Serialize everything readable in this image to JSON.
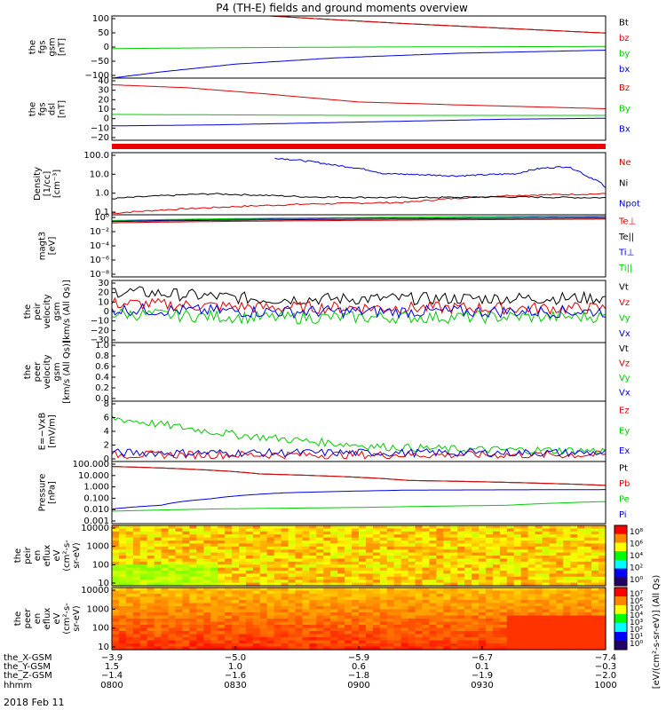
{
  "title": "P4 (TH-E) fields and ground moments overview",
  "date_label": "2018 Feb 11",
  "colors": {
    "black": "#000000",
    "red": "#dd0000",
    "green": "#00cc00",
    "blue": "#0000dd"
  },
  "chart_data": [
    {
      "type": "line",
      "id": "fgs-gsm",
      "ylabel": [
        "the",
        "fgs",
        "gsm",
        "[nT]"
      ],
      "ylim": [
        -100,
        100
      ],
      "yticks": [
        "100",
        "50",
        "0",
        "−50",
        "−100"
      ],
      "series": [
        {
          "name": "Bt",
          "color": "black",
          "x": [
            0.32,
            0.45,
            0.6,
            0.8,
            1.0
          ],
          "values": [
            100,
            88,
            75,
            60,
            45
          ]
        },
        {
          "name": "bz",
          "color": "red",
          "x": [
            0.32,
            0.45,
            0.6,
            0.8,
            1.0
          ],
          "values": [
            100,
            88,
            75,
            60,
            45
          ]
        },
        {
          "name": "by",
          "color": "green",
          "x": [
            0,
            0.25,
            0.5,
            0.75,
            1.0
          ],
          "values": [
            -5,
            -2,
            0,
            1,
            2
          ]
        },
        {
          "name": "bx",
          "color": "blue",
          "x": [
            0,
            0.1,
            0.25,
            0.45,
            0.7,
            1.0
          ],
          "values": [
            -100,
            -80,
            -55,
            -35,
            -20,
            -10
          ]
        }
      ]
    },
    {
      "type": "line",
      "id": "fgs-dsl",
      "ylabel": [
        "the",
        "fgs",
        "dsl",
        "[nT]"
      ],
      "ylim": [
        -25,
        40
      ],
      "yticks": [
        "40",
        "30",
        "20",
        "10",
        "0",
        "−10",
        "−20"
      ],
      "series": [
        {
          "name": "Bz",
          "color": "red",
          "x": [
            0,
            0.15,
            0.3,
            0.5,
            0.7,
            0.85,
            1.0
          ],
          "values": [
            33,
            30,
            24,
            15,
            12,
            10,
            8
          ]
        },
        {
          "name": "By",
          "color": "green",
          "x": [
            0,
            0.5,
            1.0
          ],
          "values": [
            2,
            1,
            1
          ]
        },
        {
          "name": "Bx",
          "color": "blue",
          "x": [
            0,
            0.2,
            0.4,
            0.6,
            0.8,
            1.0
          ],
          "values": [
            -10,
            -9,
            -7,
            -5,
            -3,
            -2
          ]
        }
      ]
    },
    {
      "type": "line",
      "id": "density",
      "ylabel": [
        "Density",
        "[1/cc]",
        "[cm⁻³]"
      ],
      "ylog": true,
      "ylim": [
        0.1,
        300
      ],
      "yticks": [
        "100.0",
        "10.0",
        "1.0",
        "0.1"
      ],
      "series": [
        {
          "name": "Ne",
          "color": "red",
          "x": [
            0,
            0.2,
            0.4,
            0.6,
            0.8,
            1.0
          ],
          "values": [
            0.12,
            0.25,
            0.4,
            0.5,
            1.2,
            1.5
          ]
        },
        {
          "name": "Ni",
          "color": "black",
          "x": [
            0,
            0.2,
            0.4,
            0.6,
            0.8,
            1.0
          ],
          "values": [
            0.8,
            1.5,
            1.0,
            0.9,
            1.0,
            0.9
          ]
        },
        {
          "name": "Npot",
          "color": "blue",
          "x": [
            0.33,
            0.45,
            0.55,
            0.7,
            0.82,
            0.87,
            0.92,
            0.96,
            1.0
          ],
          "values": [
            150,
            60,
            20,
            15,
            20,
            40,
            50,
            15,
            3
          ]
        }
      ]
    },
    {
      "type": "line",
      "id": "moments",
      "ylabel": [
        "magt3",
        "[eV]"
      ],
      "ylog": true,
      "ylim": [
        1e-09,
        10
      ],
      "yticks": [
        "10⁰",
        "10⁻²",
        "10⁻⁴",
        "10⁻⁶",
        "10⁻⁸"
      ],
      "series": [
        {
          "name": "Te⊥",
          "color": "red",
          "x": [
            0,
            1
          ],
          "values": [
            0.5,
            2
          ]
        },
        {
          "name": "Te||",
          "color": "black",
          "x": [
            0,
            1
          ],
          "values": [
            0.8,
            3
          ]
        },
        {
          "name": "Ti⊥",
          "color": "blue",
          "x": [
            0,
            1
          ],
          "values": [
            1,
            5
          ]
        },
        {
          "name": "Ti||",
          "color": "green",
          "x": [
            0,
            1
          ],
          "values": [
            1.2,
            6
          ]
        }
      ]
    },
    {
      "type": "line",
      "id": "peir-velocity",
      "ylabel": [
        "the",
        "peir",
        "velocity",
        "gsm",
        "[km/s (All Qs)]"
      ],
      "ylim": [
        -30,
        30
      ],
      "yticks": [
        "30",
        "20",
        "10",
        "0",
        "−10",
        "−20",
        "−30"
      ],
      "series": [
        {
          "name": "Vt",
          "color": "black",
          "x": [
            0,
            0.3,
            1
          ],
          "values": [
            20,
            12,
            13
          ]
        },
        {
          "name": "Vz",
          "color": "red",
          "x": [
            0,
            0.3,
            1
          ],
          "values": [
            8,
            4,
            3
          ]
        },
        {
          "name": "Vy",
          "color": "green",
          "x": [
            0,
            0.3,
            1
          ],
          "values": [
            -2,
            -6,
            -5
          ]
        },
        {
          "name": "Vx",
          "color": "blue",
          "x": [
            0,
            0.3,
            1
          ],
          "values": [
            2,
            0,
            0
          ]
        }
      ]
    },
    {
      "type": "line",
      "id": "peer-velocity",
      "ylabel": [
        "the",
        "peer",
        "velocity",
        "gsm",
        "[km/s (All Qs)]"
      ],
      "ylim": [
        0,
        1
      ],
      "yticks": [
        "1.0",
        "0.8",
        "0.6",
        "0.4",
        "0.2",
        "0.0"
      ],
      "series": [
        {
          "name": "Vt",
          "color": "black",
          "x": [],
          "values": []
        },
        {
          "name": "Vz",
          "color": "red",
          "x": [],
          "values": []
        },
        {
          "name": "Vy",
          "color": "green",
          "x": [],
          "values": []
        },
        {
          "name": "Vx",
          "color": "blue",
          "x": [],
          "values": []
        }
      ]
    },
    {
      "type": "line",
      "id": "efield",
      "ylabel": [
        "E=−VxB",
        "[mV/m]"
      ],
      "ylim": [
        -1,
        8
      ],
      "yticks": [
        "8",
        "6",
        "4",
        "2",
        "0"
      ],
      "series": [
        {
          "name": "Ez",
          "color": "red",
          "x": [
            0,
            1
          ],
          "values": [
            0,
            0
          ]
        },
        {
          "name": "Ey",
          "color": "green",
          "x": [
            0,
            0.1,
            0.25,
            0.4,
            0.55,
            0.7,
            1.0
          ],
          "values": [
            5.5,
            4.5,
            3,
            2,
            1.2,
            0.8,
            0.6
          ]
        },
        {
          "name": "Ex",
          "color": "blue",
          "x": [
            0,
            1
          ],
          "values": [
            0.3,
            0.3
          ]
        }
      ]
    },
    {
      "type": "line",
      "id": "pressure",
      "ylabel": [
        "Pressure",
        "[nPa]"
      ],
      "ylog": true,
      "ylim": [
        0.001,
        100
      ],
      "yticks": [
        "100.000",
        "10.000",
        "1.000",
        "0.100",
        "0.010",
        "0.001"
      ],
      "series": [
        {
          "name": "Pt",
          "color": "black",
          "x": [
            0,
            0.3,
            0.6,
            1
          ],
          "values": [
            40,
            10,
            3,
            1.2
          ]
        },
        {
          "name": "Pb",
          "color": "red",
          "x": [
            0,
            0.3,
            0.6,
            1
          ],
          "values": [
            40,
            10,
            3,
            1.2
          ]
        },
        {
          "name": "Pe",
          "color": "green",
          "x": [
            0,
            0.2,
            0.5,
            0.8,
            1
          ],
          "values": [
            0.01,
            0.015,
            0.02,
            0.03,
            0.06
          ]
        },
        {
          "name": "Pi",
          "color": "blue",
          "x": [
            0,
            0.1,
            0.2,
            0.35,
            0.6,
            1
          ],
          "values": [
            0.015,
            0.03,
            0.1,
            0.3,
            0.5,
            0.55
          ]
        }
      ]
    },
    {
      "type": "heatmap",
      "id": "peir-spectrogram",
      "ylabel": [
        "the",
        "peir",
        "en",
        "eflux",
        "eV",
        "(cm²-s-",
        "sr-eV)"
      ],
      "yticks": [
        "10000",
        "1000",
        "100",
        "10"
      ],
      "colorbar_ticks": [
        "10⁸",
        "10⁶",
        "10⁴",
        "10²",
        "10⁰"
      ]
    },
    {
      "type": "heatmap",
      "id": "peer-spectrogram",
      "ylabel": [
        "the",
        "peer",
        "en",
        "eflux",
        "eV",
        "(cm²-s-",
        "sr-eV)"
      ],
      "yticks": [
        "10000",
        "1000",
        "100",
        "10"
      ],
      "colorbar_ticks": [
        "10⁷",
        "10⁶",
        "10⁵",
        "10⁴",
        "10³",
        "10²",
        "10¹",
        "10⁰"
      ]
    }
  ],
  "colorbar_label": "[eV/(cm²-s-sr-eV)] (All Qs)",
  "xaxis": {
    "row_labels": [
      "the_X-GSM",
      "the_Y-GSM",
      "the_Z-GSM",
      "hhmm"
    ],
    "columns": [
      [
        "−3.9",
        "1.5",
        "−1.4",
        "0800"
      ],
      [
        "−5.0",
        "1.0",
        "−1.6",
        "0830"
      ],
      [
        "−5.9",
        "0.6",
        "−1.8",
        "0900"
      ],
      [
        "−6.7",
        "0.1",
        "−1.9",
        "0930"
      ],
      [
        "−7.4",
        "−0.3",
        "−2.0",
        "1000"
      ]
    ]
  }
}
